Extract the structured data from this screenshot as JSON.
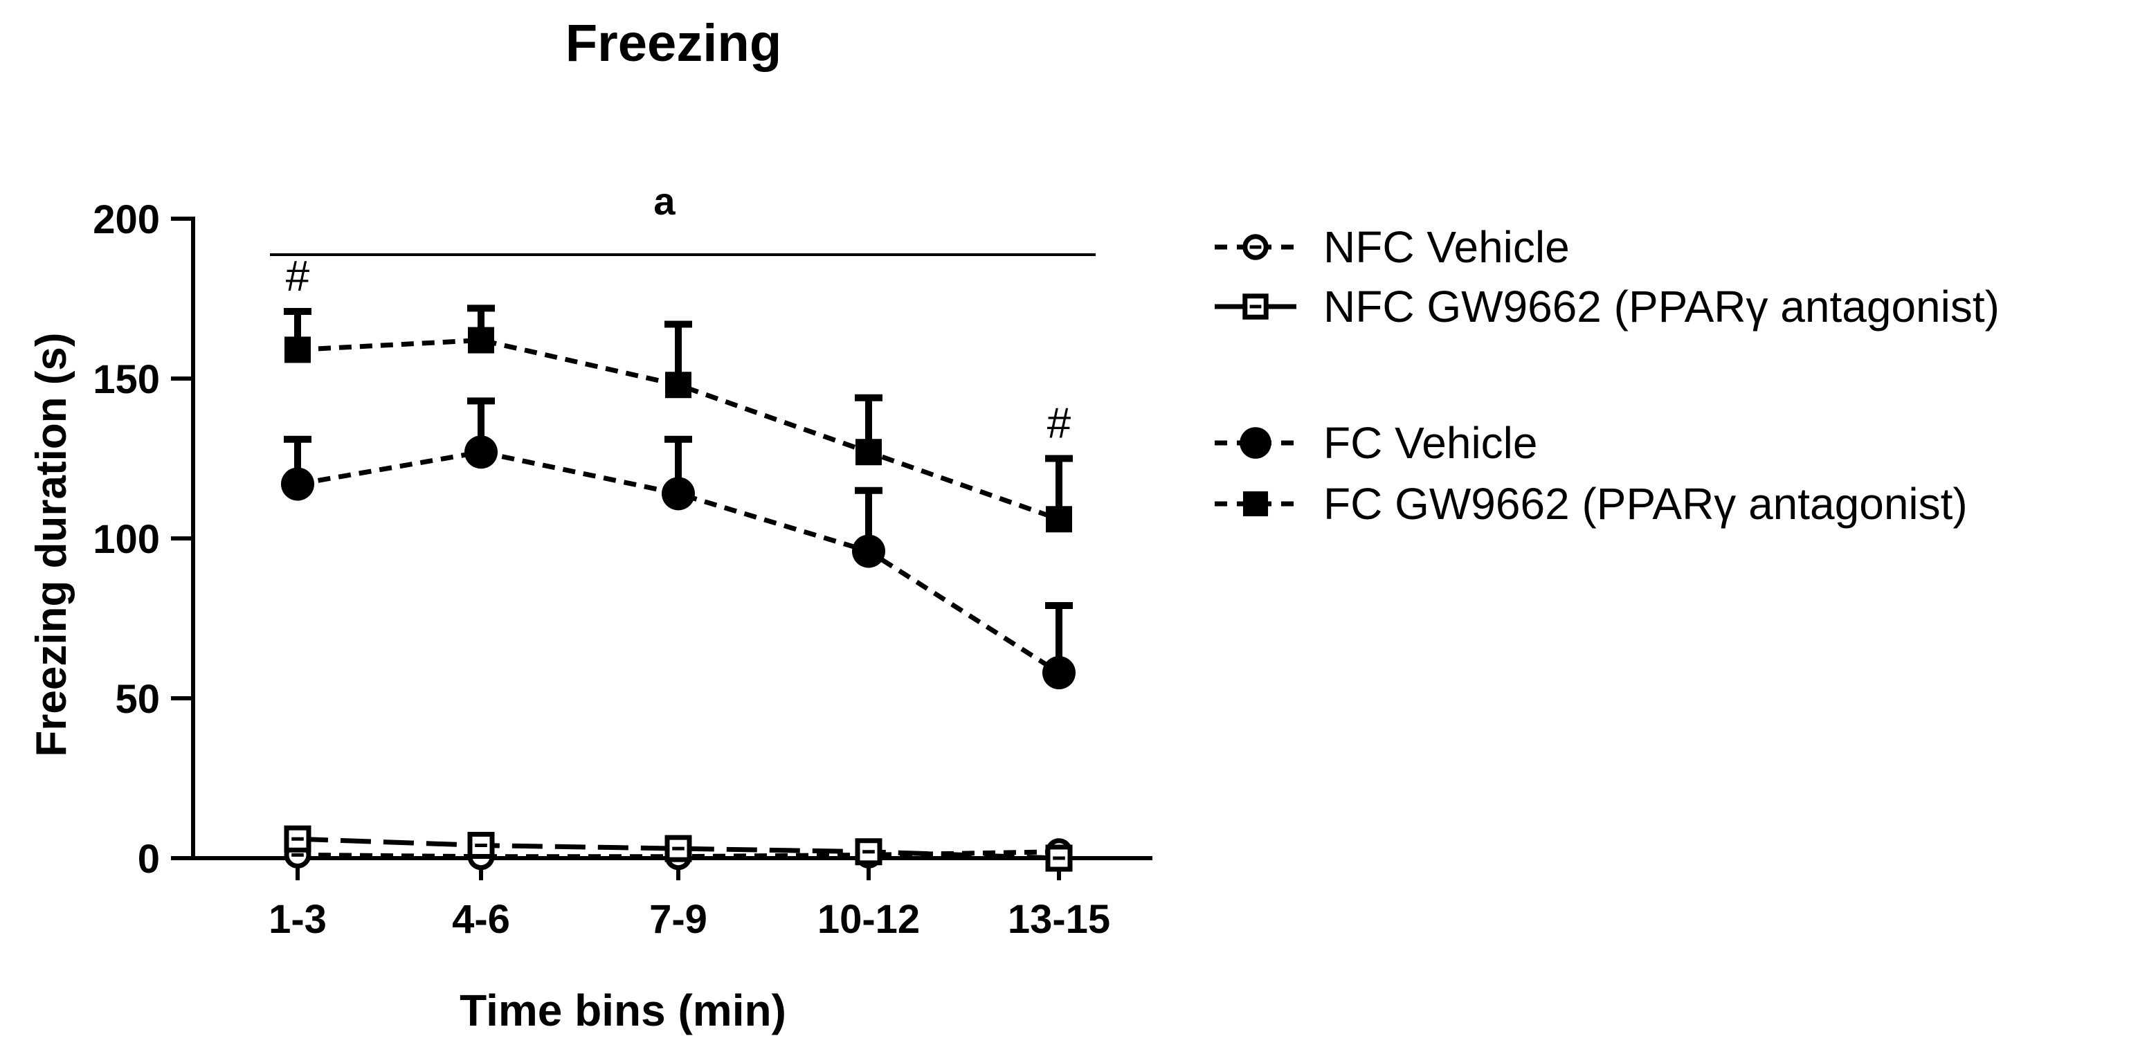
{
  "chart_data": {
    "type": "line",
    "title": "Freezing",
    "xlabel": "Time bins (min)",
    "ylabel": "Freezing duration (s)",
    "categories": [
      "1-3",
      "4-6",
      "7-9",
      "10-12",
      "13-15"
    ],
    "ylim": [
      0,
      200
    ],
    "yticks": [
      0,
      50,
      100,
      150,
      200
    ],
    "grid": false,
    "legend_position": "right",
    "significance": {
      "bracket_label": "a",
      "markers": [
        {
          "label": "#",
          "category": "1-3"
        },
        {
          "label": "#",
          "category": "13-15"
        }
      ]
    },
    "series": [
      {
        "name": "NFC Vehicle",
        "marker": "open-circle",
        "line": "dashed",
        "values": [
          1,
          0.5,
          0.5,
          1,
          2
        ],
        "errors": [
          0,
          0,
          0,
          0,
          0
        ]
      },
      {
        "name": "NFC  GW9662 (PPARγ antagonist)",
        "marker": "open-square",
        "line": "long-dashed",
        "values": [
          6,
          4,
          3,
          2,
          0
        ],
        "errors": [
          0,
          0,
          0,
          0,
          0
        ]
      },
      {
        "name": "FC Vehicle",
        "marker": "filled-circle",
        "line": "dashed",
        "values": [
          117,
          127,
          114,
          96,
          58
        ],
        "errors": [
          14,
          16,
          17,
          19,
          21
        ]
      },
      {
        "name": "FC GW9662 (PPARγ antagonist)",
        "marker": "filled-square",
        "line": "dashed",
        "values": [
          159,
          162,
          148,
          127,
          106
        ],
        "errors": [
          12,
          10,
          19,
          17,
          19
        ]
      }
    ]
  },
  "colors": {
    "ink": "#000000",
    "background": "#ffffff"
  }
}
